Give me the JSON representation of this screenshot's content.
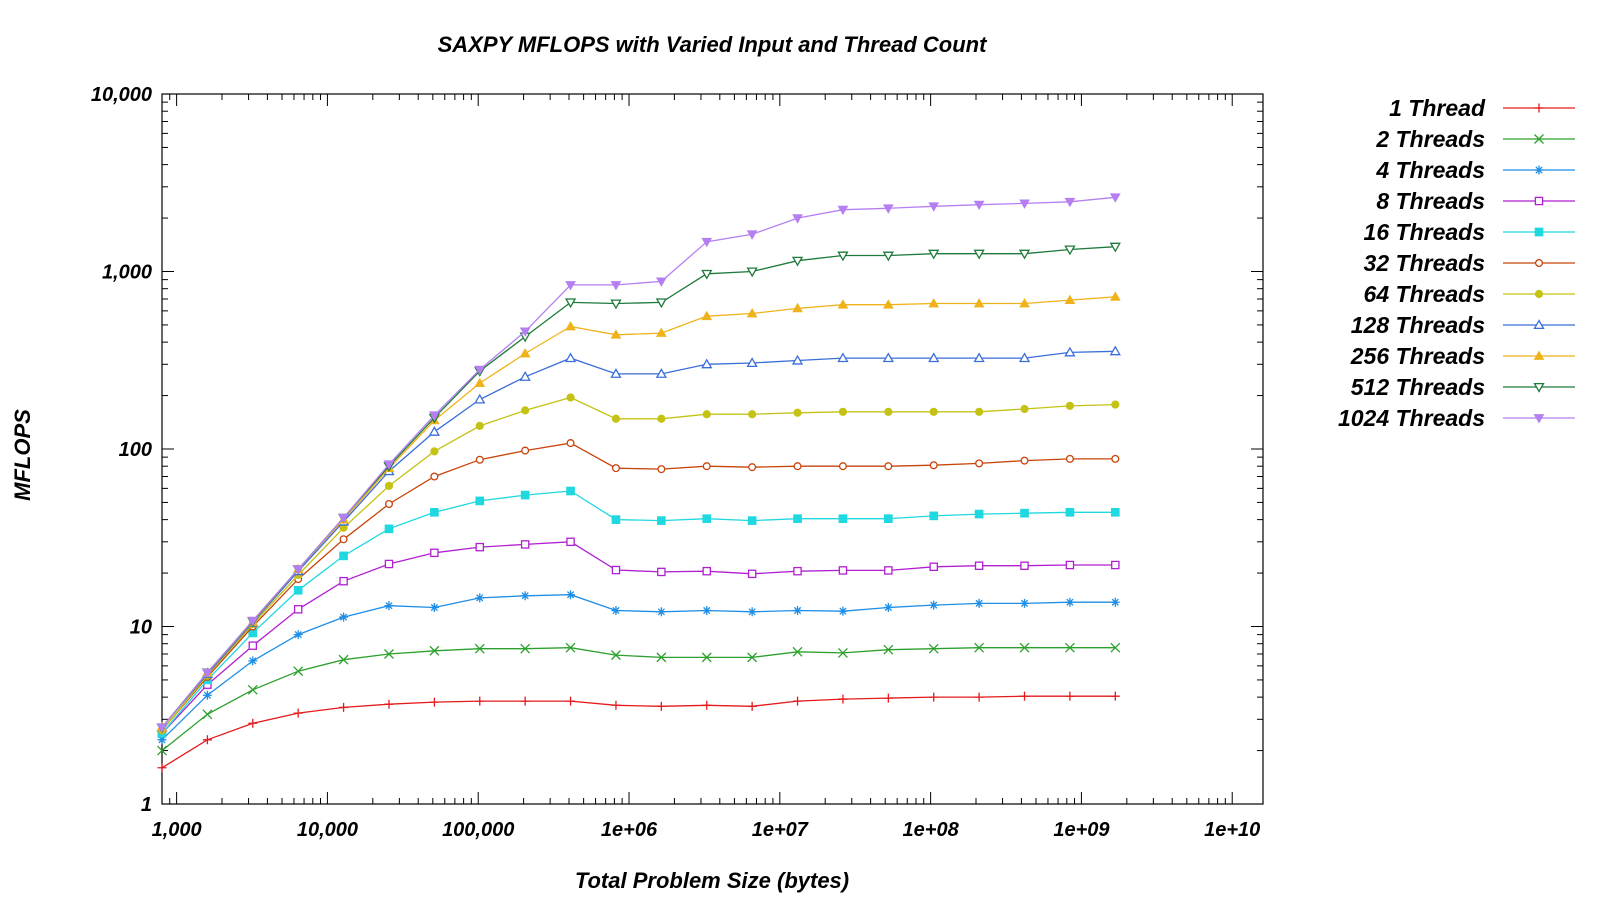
{
  "chart_data": {
    "type": "line",
    "title": "SAXPY MFLOPS with Varied Input and Thread Count",
    "xlabel": "Total Problem Size (bytes)",
    "ylabel": "MFLOPS",
    "x_scale": "log",
    "y_scale": "log",
    "xlim": [
      800,
      16000000000
    ],
    "ylim": [
      1,
      10000
    ],
    "x_ticks": [
      {
        "value": 1000,
        "label": "1,000"
      },
      {
        "value": 10000,
        "label": "10,000"
      },
      {
        "value": 100000,
        "label": "100,000"
      },
      {
        "value": 1000000,
        "label": "1e+06"
      },
      {
        "value": 10000000,
        "label": "1e+07"
      },
      {
        "value": 100000000,
        "label": "1e+08"
      },
      {
        "value": 1000000000,
        "label": "1e+09"
      },
      {
        "value": 10000000000,
        "label": "1e+10"
      }
    ],
    "y_ticks": [
      {
        "value": 1,
        "label": "1"
      },
      {
        "value": 10,
        "label": "10"
      },
      {
        "value": 100,
        "label": "100"
      },
      {
        "value": 1000,
        "label": "1,000"
      },
      {
        "value": 10000,
        "label": "10,000"
      }
    ],
    "grid": false,
    "legend_position": "right",
    "x": [
      800,
      1600,
      3200,
      6400,
      12800,
      25600,
      51200,
      102400,
      204800,
      409600,
      819200,
      1638400,
      3276800,
      6553600,
      13107200,
      26214400,
      52428800,
      104857600,
      209715200,
      419430400,
      838860800,
      1677721600
    ],
    "series": [
      {
        "name": "1 Thread",
        "color": "#e41a1c",
        "marker": "plus",
        "values": [
          1.6,
          2.3,
          2.85,
          3.25,
          3.5,
          3.65,
          3.75,
          3.8,
          3.8,
          3.8,
          3.6,
          3.55,
          3.6,
          3.55,
          3.8,
          3.9,
          3.95,
          4.0,
          4.0,
          4.05,
          4.05,
          4.05
        ]
      },
      {
        "name": "2 Threads",
        "color": "#2ca02c",
        "marker": "x",
        "values": [
          2.0,
          3.2,
          4.4,
          5.6,
          6.5,
          7.0,
          7.3,
          7.5,
          7.5,
          7.6,
          6.9,
          6.7,
          6.7,
          6.7,
          7.2,
          7.1,
          7.4,
          7.5,
          7.6,
          7.6,
          7.6,
          7.6
        ]
      },
      {
        "name": "4 Threads",
        "color": "#1f8ee6",
        "marker": "star",
        "values": [
          2.3,
          4.1,
          6.4,
          9.0,
          11.3,
          13.1,
          12.8,
          14.5,
          14.9,
          15.1,
          12.3,
          12.1,
          12.3,
          12.1,
          12.3,
          12.2,
          12.8,
          13.2,
          13.5,
          13.5,
          13.7,
          13.7
        ]
      },
      {
        "name": "8 Threads",
        "color": "#b01fd1",
        "marker": "square-open",
        "values": [
          2.5,
          4.7,
          7.8,
          12.5,
          18.0,
          22.5,
          26.0,
          28.0,
          29.0,
          30.0,
          20.8,
          20.3,
          20.5,
          19.8,
          20.5,
          20.7,
          20.7,
          21.7,
          22.0,
          22.0,
          22.2,
          22.2
        ]
      },
      {
        "name": "16 Threads",
        "color": "#1fd8e0",
        "marker": "square",
        "values": [
          2.5,
          5.0,
          9.2,
          16.0,
          25.0,
          35.5,
          44.0,
          51.0,
          55.0,
          58.0,
          40.0,
          39.5,
          40.5,
          39.5,
          40.5,
          40.5,
          40.5,
          42.0,
          43.0,
          43.5,
          44.0,
          44.0
        ]
      },
      {
        "name": "32 Threads",
        "color": "#c8440a",
        "marker": "circle-open",
        "values": [
          2.6,
          5.2,
          10.0,
          18.5,
          31.0,
          49.0,
          70.0,
          87.0,
          98.0,
          108.0,
          78.0,
          77.0,
          80.0,
          79.0,
          80.0,
          80.0,
          80.0,
          81.0,
          83.0,
          86.0,
          88.0,
          88.0
        ]
      },
      {
        "name": "64 Threads",
        "color": "#c4c214",
        "marker": "circle",
        "values": [
          2.6,
          5.3,
          10.3,
          19.5,
          36.0,
          62.0,
          97.0,
          135.0,
          165.0,
          195.0,
          148.0,
          148.0,
          157.0,
          157.0,
          160.0,
          162.0,
          162.0,
          162.0,
          162.0,
          168.0,
          175.0,
          178.0
        ]
      },
      {
        "name": "128 Threads",
        "color": "#3a6ed8",
        "marker": "triangle-open",
        "values": [
          2.7,
          5.4,
          10.5,
          20.5,
          39.0,
          75.0,
          125.0,
          190.0,
          255.0,
          325.0,
          265.0,
          265.0,
          300.0,
          305.0,
          315.0,
          325.0,
          325.0,
          325.0,
          325.0,
          325.0,
          350.0,
          355.0
        ]
      },
      {
        "name": "256 Threads",
        "color": "#f0b21a",
        "marker": "triangle",
        "values": [
          2.7,
          5.5,
          10.6,
          21.0,
          40.0,
          78.0,
          145.0,
          235.0,
          345.0,
          490.0,
          440.0,
          450.0,
          560.0,
          580.0,
          620.0,
          650.0,
          650.0,
          660.0,
          660.0,
          660.0,
          690.0,
          720.0
        ]
      },
      {
        "name": "512 Threads",
        "color": "#1e7a3a",
        "marker": "triangle-down-open",
        "values": [
          2.7,
          5.5,
          10.7,
          21.0,
          41.0,
          80.0,
          150.0,
          275.0,
          430.0,
          670.0,
          660.0,
          670.0,
          970.0,
          1000.0,
          1150.0,
          1230.0,
          1230.0,
          1260.0,
          1260.0,
          1260.0,
          1330.0,
          1380.0
        ]
      },
      {
        "name": "1024 Threads",
        "color": "#b57ff2",
        "marker": "triangle-down",
        "values": [
          2.7,
          5.5,
          10.8,
          21.0,
          41.0,
          82.0,
          155.0,
          280.0,
          460.0,
          840.0,
          840.0,
          880.0,
          1470.0,
          1620.0,
          2000.0,
          2230.0,
          2270.0,
          2330.0,
          2380.0,
          2420.0,
          2470.0,
          2620.0
        ]
      }
    ]
  }
}
